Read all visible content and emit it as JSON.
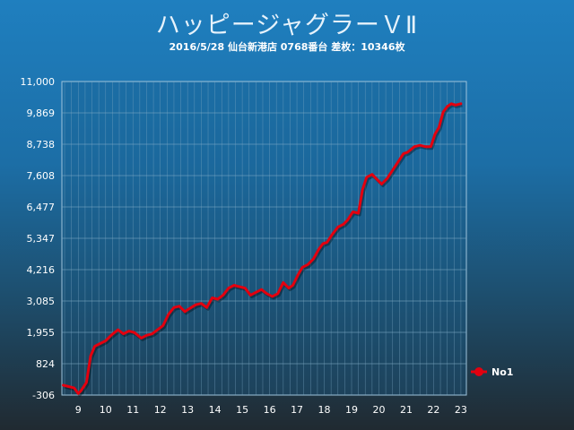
{
  "header": {
    "title": "ハッピージャグラーＶⅡ",
    "subtitle": "2016/5/28 仙台新港店 0768番台 差枚：10346枚"
  },
  "colors": {
    "line": "#e3000f",
    "grid": "#7fa9c4"
  },
  "chart_data": {
    "type": "line",
    "title": "ハッピージャグラーＶⅡ",
    "subtitle": "2016/5/28 仙台新港店 0768番台 差枚：10346枚",
    "xlim": [
      8.4,
      23.2
    ],
    "ylim": [
      -306,
      11000
    ],
    "x_ticks": [
      9,
      10,
      11,
      12,
      13,
      14,
      15,
      16,
      17,
      18,
      19,
      20,
      21,
      22,
      23
    ],
    "y_ticks": [
      -306,
      824,
      1955,
      3085,
      4216,
      5347,
      6477,
      7608,
      8738,
      9869,
      11000
    ],
    "y_tick_labels": [
      "-306",
      "824",
      "1,955",
      "3,085",
      "4,216",
      "5,347",
      "6,477",
      "7,608",
      "8,738",
      "9,869",
      "11,000"
    ],
    "grid": true,
    "legend": "right",
    "series": [
      {
        "name": "No1",
        "color": "#e3000f",
        "x": [
          8.45,
          8.65,
          8.85,
          9.0,
          9.1,
          9.3,
          9.45,
          9.6,
          9.8,
          10.0,
          10.2,
          10.45,
          10.65,
          10.85,
          11.05,
          11.3,
          11.5,
          11.7,
          11.9,
          12.1,
          12.3,
          12.5,
          12.7,
          12.9,
          13.05,
          13.3,
          13.5,
          13.7,
          13.9,
          14.1,
          14.3,
          14.5,
          14.7,
          14.9,
          15.1,
          15.3,
          15.5,
          15.7,
          15.9,
          16.1,
          16.3,
          16.5,
          16.7,
          16.85,
          17.05,
          17.2,
          17.4,
          17.6,
          17.8,
          17.95,
          18.1,
          18.3,
          18.5,
          18.7,
          18.85,
          19.05,
          19.25,
          19.4,
          19.55,
          19.75,
          19.9,
          20.1,
          20.3,
          20.5,
          20.7,
          20.9,
          21.05,
          21.3,
          21.5,
          21.7,
          21.9,
          22.05,
          22.2,
          22.35,
          22.5,
          22.65,
          22.8,
          23.0
        ],
        "y": [
          50,
          0,
          -50,
          -250,
          -150,
          150,
          1100,
          1450,
          1550,
          1650,
          1850,
          2050,
          1900,
          2000,
          1950,
          1750,
          1850,
          1900,
          2050,
          2200,
          2600,
          2850,
          2900,
          2700,
          2800,
          2950,
          3000,
          2850,
          3200,
          3150,
          3300,
          3550,
          3650,
          3600,
          3550,
          3300,
          3400,
          3500,
          3350,
          3250,
          3350,
          3750,
          3550,
          3650,
          4050,
          4300,
          4400,
          4600,
          4950,
          5150,
          5200,
          5500,
          5750,
          5850,
          6000,
          6300,
          6250,
          7100,
          7550,
          7650,
          7500,
          7300,
          7500,
          7800,
          8100,
          8400,
          8450,
          8650,
          8700,
          8650,
          8650,
          9100,
          9350,
          9900,
          10100,
          10200,
          10150,
          10200
        ]
      }
    ]
  }
}
